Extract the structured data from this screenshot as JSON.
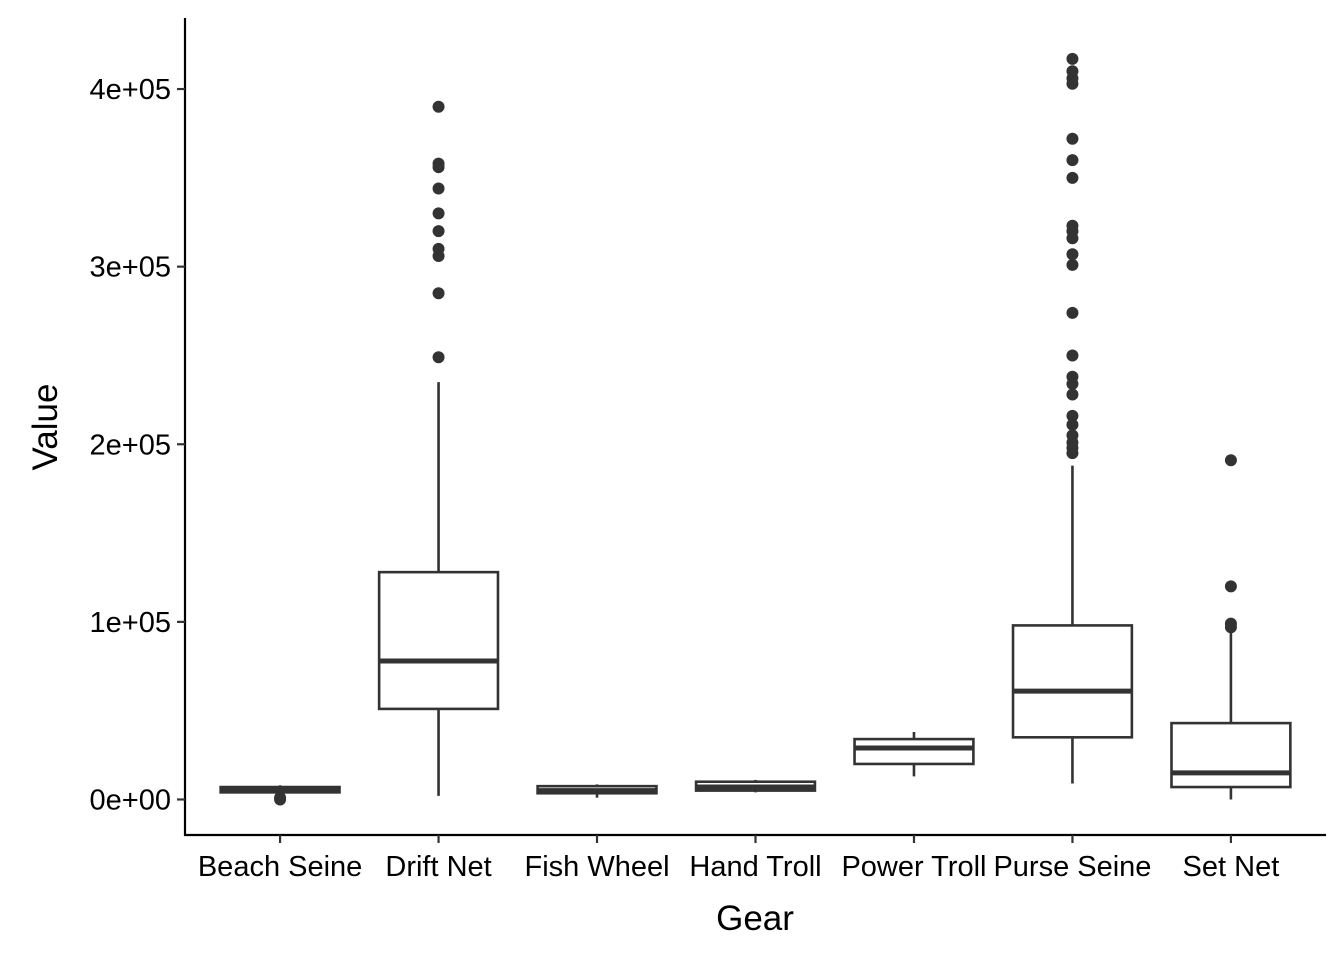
{
  "chart_data": {
    "type": "boxplot",
    "title": "",
    "xlabel": "Gear",
    "ylabel": "Value",
    "ylim": [
      -20000,
      440000
    ],
    "y_ticks": [
      {
        "value": 0,
        "label": "0e+00"
      },
      {
        "value": 100000,
        "label": "1e+05"
      },
      {
        "value": 200000,
        "label": "2e+05"
      },
      {
        "value": 300000,
        "label": "3e+05"
      },
      {
        "value": 400000,
        "label": "4e+05"
      }
    ],
    "grid": false,
    "legend": "none",
    "colors": {
      "box_stroke": "#333333",
      "box_fill": "#ffffff",
      "outlier": "#333333",
      "axis": "#000000"
    },
    "categories": [
      "Beach Seine",
      "Drift Net",
      "Fish Wheel",
      "Hand Troll",
      "Power Troll",
      "Purse Seine",
      "Set Net"
    ],
    "boxes": [
      {
        "category": "Beach Seine",
        "whisker_low": 3000,
        "q1": 4000,
        "median": 5500,
        "q3": 7000,
        "whisker_high": 8000,
        "outliers": [
          0,
          1000
        ]
      },
      {
        "category": "Drift Net",
        "whisker_low": 2000,
        "q1": 51000,
        "median": 78000,
        "q3": 128000,
        "whisker_high": 235000,
        "outliers": [
          249000,
          285000,
          306000,
          310000,
          320000,
          330000,
          344000,
          356000,
          358000,
          390000
        ]
      },
      {
        "category": "Fish Wheel",
        "whisker_low": 1000,
        "q1": 3500,
        "median": 5000,
        "q3": 7500,
        "whisker_high": 8500,
        "outliers": []
      },
      {
        "category": "Hand Troll",
        "whisker_low": 4000,
        "q1": 5000,
        "median": 7000,
        "q3": 10000,
        "whisker_high": 11000,
        "outliers": []
      },
      {
        "category": "Power Troll",
        "whisker_low": 13000,
        "q1": 20000,
        "median": 29000,
        "q3": 34000,
        "whisker_high": 38000,
        "outliers": []
      },
      {
        "category": "Purse Seine",
        "whisker_low": 9000,
        "q1": 35000,
        "median": 61000,
        "q3": 98000,
        "whisker_high": 188000,
        "outliers": [
          195000,
          198000,
          201000,
          205000,
          211000,
          216000,
          228000,
          234000,
          238000,
          250000,
          274000,
          301000,
          307000,
          316000,
          320000,
          323000,
          350000,
          360000,
          372000,
          403000,
          406000,
          410000,
          417000
        ]
      },
      {
        "category": "Set Net",
        "whisker_low": 0,
        "q1": 7000,
        "median": 15000,
        "q3": 43000,
        "whisker_high": 95000,
        "outliers": [
          97000,
          99000,
          120000,
          191000
        ]
      }
    ]
  }
}
